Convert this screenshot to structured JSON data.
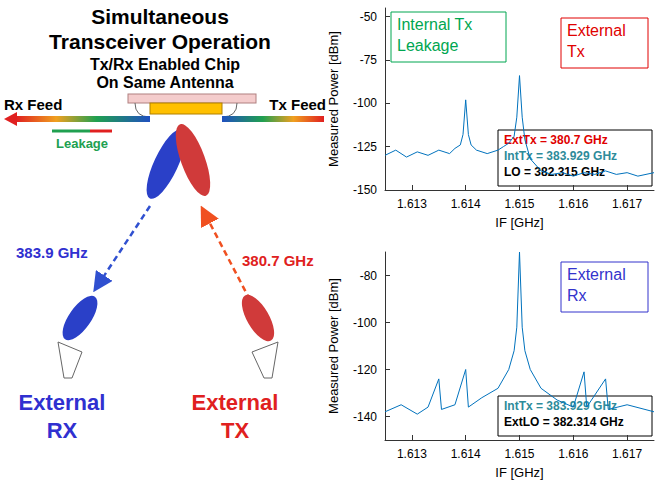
{
  "diagram": {
    "title_lines": [
      "Simultaneous",
      "Transceiver Operation"
    ],
    "chip_lines": [
      "Tx/Rx Enabled Chip",
      "On Same Antenna"
    ],
    "rx_feed": "Rx Feed",
    "tx_feed": "Tx Feed",
    "leakage": "Leakage",
    "downlink_freq": "383.9 GHz",
    "uplink_freq": "380.7 GHz",
    "external_rx_lines": [
      "External",
      "RX"
    ],
    "external_tx_lines": [
      "External",
      "TX"
    ]
  },
  "chart_data": [
    {
      "type": "line",
      "x_label": "IF [GHz]",
      "y_label": "Measured Power [dBm]",
      "xlim": [
        1.6125,
        1.6175
      ],
      "xticks": [
        1.613,
        1.614,
        1.615,
        1.616,
        1.617
      ],
      "ylim": [
        -150,
        -45
      ],
      "yticks": [
        -150,
        -125,
        -100,
        -75,
        -50
      ],
      "grid": false,
      "color": "#0072bd",
      "x": [
        1.6125,
        1.6127,
        1.6129,
        1.6131,
        1.6133,
        1.6135,
        1.6137,
        1.6138,
        1.6139,
        1.61395,
        1.614,
        1.61405,
        1.6141,
        1.6142,
        1.6144,
        1.6146,
        1.6147,
        1.6148,
        1.6149,
        1.61495,
        1.615,
        1.61505,
        1.6151,
        1.6152,
        1.6154,
        1.6156,
        1.6158,
        1.616,
        1.6162,
        1.6164,
        1.6166,
        1.6168,
        1.617,
        1.6172,
        1.6175
      ],
      "values": [
        -130,
        -127,
        -131,
        -128,
        -130,
        -127,
        -129,
        -126,
        -124,
        -118,
        -98,
        -118,
        -124,
        -127,
        -129,
        -127,
        -125,
        -123,
        -119,
        -108,
        -84,
        -108,
        -121,
        -132,
        -139,
        -141,
        -140,
        -142,
        -140,
        -141,
        -139,
        -141,
        -140,
        -142,
        -140
      ],
      "annotations": [
        {
          "text_lines": [
            "Internal Tx",
            "Leakage"
          ],
          "color": "#00a651"
        },
        {
          "text_lines": [
            "External",
            "Tx"
          ],
          "color": "#e00000"
        }
      ],
      "info_box": [
        {
          "text": "ExtTx = 380.7 GHz",
          "color": "#e00000"
        },
        {
          "text": "IntTx = 383.929 GHz",
          "color": "#2e8b9a"
        },
        {
          "text": "LO = 382.315 GHz",
          "color": "#000000"
        }
      ]
    },
    {
      "type": "line",
      "x_label": "IF [GHz]",
      "y_label": "Measured Power [dBm]",
      "xlim": [
        1.6125,
        1.6175
      ],
      "xticks": [
        1.613,
        1.614,
        1.615,
        1.616,
        1.617
      ],
      "ylim": [
        -150,
        -70
      ],
      "yticks": [
        -140,
        -120,
        -100,
        -80
      ],
      "grid": false,
      "color": "#0072bd",
      "x": [
        1.6125,
        1.6128,
        1.6131,
        1.6133,
        1.6135,
        1.61355,
        1.6138,
        1.614,
        1.61405,
        1.6143,
        1.6146,
        1.6148,
        1.6149,
        1.61495,
        1.615,
        1.61505,
        1.6151,
        1.6152,
        1.6154,
        1.6157,
        1.616,
        1.6162,
        1.61625,
        1.6166,
        1.61665,
        1.617,
        1.6175
      ],
      "values": [
        -138,
        -135,
        -139,
        -136,
        -124,
        -137,
        -135,
        -120,
        -136,
        -132,
        -128,
        -120,
        -112,
        -102,
        -70,
        -102,
        -112,
        -120,
        -128,
        -133,
        -136,
        -121,
        -136,
        -124,
        -137,
        -135,
        -138
      ],
      "annotations": [
        {
          "text_lines": [
            "External",
            "Rx"
          ],
          "color": "#3333cc"
        }
      ],
      "info_box": [
        {
          "text": "IntTx = 383.929 GHz",
          "color": "#2e8b9a"
        },
        {
          "text": "ExtLO = 382.314 GHz",
          "color": "#000000"
        }
      ]
    }
  ]
}
